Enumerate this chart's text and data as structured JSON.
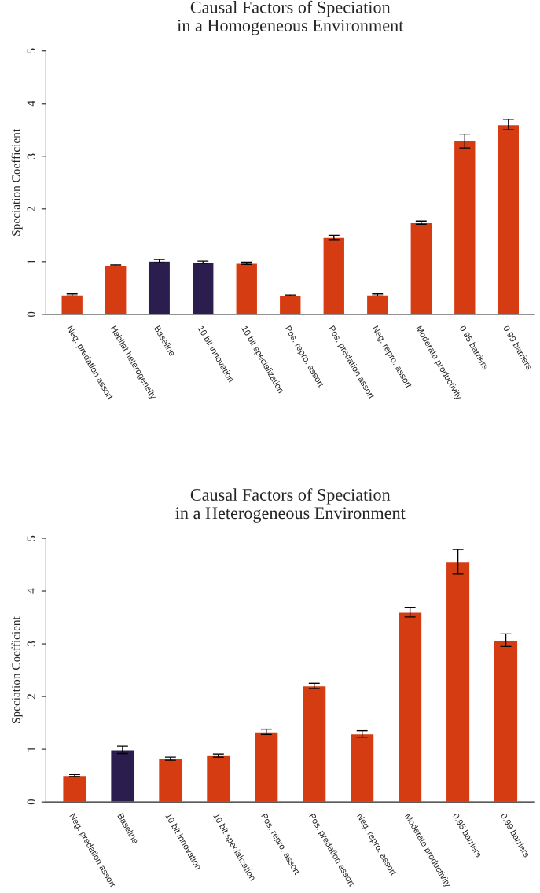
{
  "chart_data": [
    {
      "type": "bar",
      "title": "Causal Factors of Speciation\nin a Homogeneous Environment",
      "ylabel": "Speciation Coefficient",
      "categories": [
        "Neg. predation assort",
        "Habitat heterogeneity",
        "Baseline",
        "10 bit innovation",
        "10 bit specialization",
        "Pos. repro. assort",
        "Pos. predation assort",
        "Neg. repro. assort",
        "Moderate productivity",
        "0.95 barriers",
        "0.99 barriers"
      ],
      "values": [
        0.37,
        0.93,
        1.01,
        0.99,
        0.97,
        0.36,
        1.46,
        0.37,
        1.74,
        3.29,
        3.6
      ],
      "errors": [
        0.02,
        0.01,
        0.03,
        0.02,
        0.02,
        0.01,
        0.04,
        0.02,
        0.03,
        0.13,
        0.1
      ],
      "colors": [
        "#d63c12",
        "#d63c12",
        "#2b1d4d",
        "#2b1d4d",
        "#d63c12",
        "#d63c12",
        "#d63c12",
        "#d63c12",
        "#d63c12",
        "#d63c12",
        "#d63c12"
      ],
      "ylim": [
        0,
        5
      ],
      "yticks": [
        0,
        1,
        2,
        3,
        4,
        5
      ],
      "grid": false,
      "legend": false
    },
    {
      "type": "bar",
      "title": "Causal Factors of Speciation\nin a Heterogeneous Environment",
      "ylabel": "Speciation Coefficient",
      "categories": [
        "Neg. predation assort",
        "Baseline",
        "10 bit innovation",
        "10 bit specialization",
        "Pos. repro. assort",
        "Pos. predation assort",
        "Neg. repro. assort",
        "Moderate productivity",
        "0.95 barriers",
        "0.99 barriers"
      ],
      "values": [
        0.5,
        0.99,
        0.82,
        0.88,
        1.33,
        2.2,
        1.29,
        3.6,
        4.56,
        3.07
      ],
      "errors": [
        0.02,
        0.07,
        0.03,
        0.03,
        0.05,
        0.05,
        0.06,
        0.09,
        0.23,
        0.12
      ],
      "colors": [
        "#d63c12",
        "#2b1d4d",
        "#d63c12",
        "#d63c12",
        "#d63c12",
        "#d63c12",
        "#d63c12",
        "#d63c12",
        "#d63c12",
        "#d63c12"
      ],
      "ylim": [
        0,
        5
      ],
      "yticks": [
        0,
        1,
        2,
        3,
        4,
        5
      ],
      "grid": false,
      "legend": false
    }
  ]
}
